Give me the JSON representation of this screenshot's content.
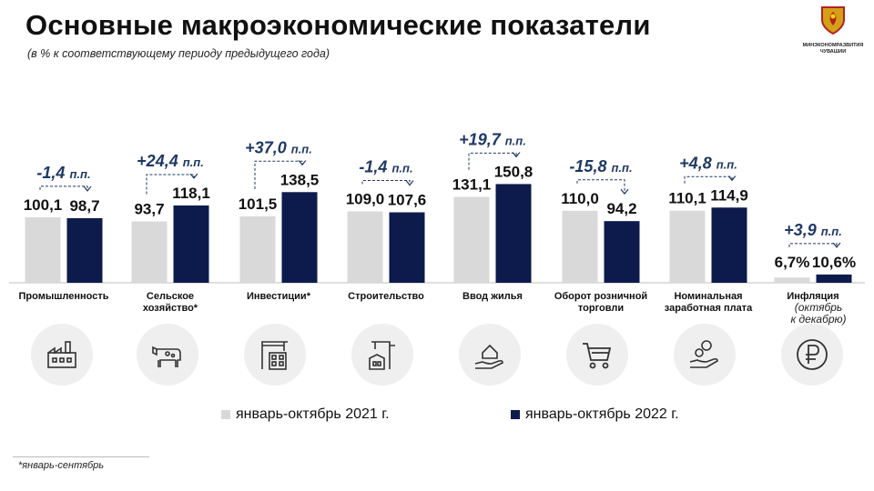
{
  "header": {
    "title": "Основные макроэкономические показатели",
    "subtitle": "(в % к соответствующему периоду предыдущего года)"
  },
  "logo": {
    "line1": "МИНЭКОНОМРАЗВИТИЯ",
    "line2": "ЧУВАШИИ"
  },
  "icons": [
    "factory-icon",
    "cow-icon",
    "construction-crane-icon",
    "building-crane-icon",
    "house-hand-icon",
    "shopping-cart-icon",
    "money-hand-icon",
    "ruble-icon"
  ],
  "legend": {
    "prev": "январь-октябрь 2021 г.",
    "curr": "январь-октябрь 2022 г."
  },
  "footnote": "*январь-сентябрь",
  "colors": {
    "prev": "#d9d9d9",
    "curr": "#0d1b4c",
    "delta": "#1f3864",
    "icon_bg": "#efefef"
  },
  "chart_data": {
    "type": "bar",
    "categories": [
      [
        "Промышленность"
      ],
      [
        "Сельское",
        "хозяйство*"
      ],
      [
        "Инвестиции*"
      ],
      [
        "Строительство"
      ],
      [
        "Ввод жилья"
      ],
      [
        "Оборот  розничной",
        "торговли"
      ],
      [
        "Номинальная",
        "заработная плата"
      ],
      [
        "Инфляция"
      ]
    ],
    "category_note": [
      "(октябрь",
      "к декабрю)"
    ],
    "series": [
      {
        "name": "январь-октябрь 2021 г.",
        "values": [
          100.1,
          93.7,
          101.5,
          109.0,
          131.1,
          110.0,
          110.1,
          6.7
        ]
      },
      {
        "name": "январь-октябрь 2022 г.",
        "values": [
          98.7,
          118.1,
          138.5,
          107.6,
          150.8,
          94.2,
          114.9,
          10.6
        ]
      }
    ],
    "value_labels": [
      [
        "100,1",
        "93,7",
        "101,5",
        "109,0",
        "131,1",
        "110,0",
        "110,1",
        "6,7%"
      ],
      [
        "98,7",
        "118,1",
        "138,5",
        "107,6",
        "150,8",
        "94,2",
        "114,9",
        "10,6%"
      ]
    ],
    "deltas": [
      {
        "value": "-1,4",
        "unit": "п.п."
      },
      {
        "value": "+24,4",
        "unit": "п.п."
      },
      {
        "value": "+37,0",
        "unit": "п.п."
      },
      {
        "value": "-1,4",
        "unit": "п.п."
      },
      {
        "value": "+19,7",
        "unit": "п.п."
      },
      {
        "value": "-15,8",
        "unit": "п.п."
      },
      {
        "value": "+4,8",
        "unit": "п.п."
      },
      {
        "value": "+3,9",
        "unit": "п.п."
      }
    ],
    "scale_note": "inflation bars use a separate compressed scale",
    "ylim": [
      0,
      160
    ],
    "grid": false,
    "legend_position": "bottom"
  }
}
